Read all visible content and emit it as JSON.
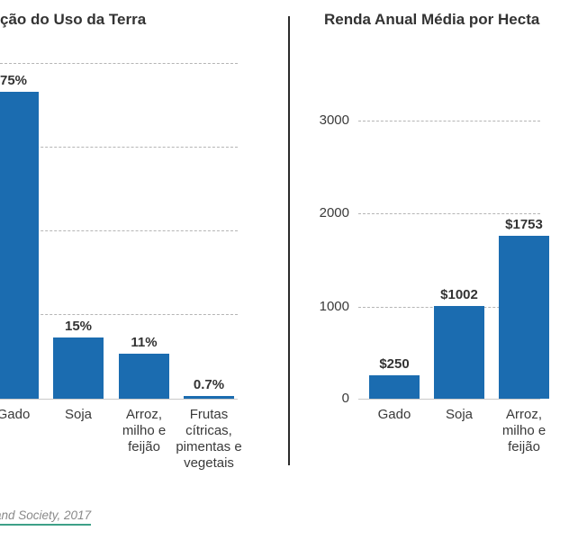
{
  "left_chart": {
    "title": "ção do Uso da Terra",
    "bars": [
      {
        "category": "Gado",
        "value_label": "75%"
      },
      {
        "category": "Soja",
        "value_label": "15%"
      },
      {
        "category": "Arroz,\nmilho e\nfeijão",
        "value_label": "11%"
      },
      {
        "category": "Frutas\ncítricas,\npimentas e\nvegetais",
        "value_label": "0.7%"
      }
    ]
  },
  "right_chart": {
    "title": "Renda Anual Média por Hecta",
    "y_ticks": [
      "3000",
      "2000",
      "1000",
      "0"
    ],
    "bars": [
      {
        "category": "Gado",
        "value_label": "$250"
      },
      {
        "category": "Soja",
        "value_label": "$1002"
      },
      {
        "category": "Arroz,\nmilho e\nfeijão",
        "value_label": "$1753"
      }
    ]
  },
  "source": {
    "label": "and Society, 2017"
  },
  "colors": {
    "bar": "#1b6cb0",
    "gridline": "#b5b5b5",
    "axis_line": "#c9c9c9",
    "title_text": "#333333",
    "label_text": "#3a3a3a",
    "divider": "#2b2b2b",
    "source_text": "#8a8a8a",
    "source_underline": "#3da088"
  },
  "chart_data": [
    {
      "type": "bar",
      "title": "ção do Uso da Terra",
      "categories": [
        "Gado",
        "Soja",
        "Arroz, milho e feijão",
        "Frutas cítricas, pimentas e vegetais"
      ],
      "values": [
        75,
        15,
        11,
        0.7
      ],
      "value_labels": [
        "75%",
        "15%",
        "11%",
        "0.7%"
      ],
      "unit": "%",
      "xlabel": "",
      "ylabel": "",
      "ylim": [
        0,
        82
      ],
      "gridlines": [
        20,
        40,
        60,
        80
      ],
      "grid": "dashed-horizontal",
      "legend": "none",
      "bar_color": "#1b6cb0"
    },
    {
      "type": "bar",
      "title": "Renda Anual Média por Hecta",
      "categories": [
        "Gado",
        "Soja",
        "Arroz, milho e feijão"
      ],
      "values": [
        250,
        1002,
        1753
      ],
      "value_labels": [
        "$250",
        "$1002",
        "$1753"
      ],
      "unit": "$",
      "xlabel": "",
      "ylabel": "",
      "ylim": [
        0,
        3300
      ],
      "yticks": [
        0,
        1000,
        2000,
        3000
      ],
      "grid": "dashed-horizontal",
      "legend": "none",
      "bar_color": "#1b6cb0"
    }
  ]
}
